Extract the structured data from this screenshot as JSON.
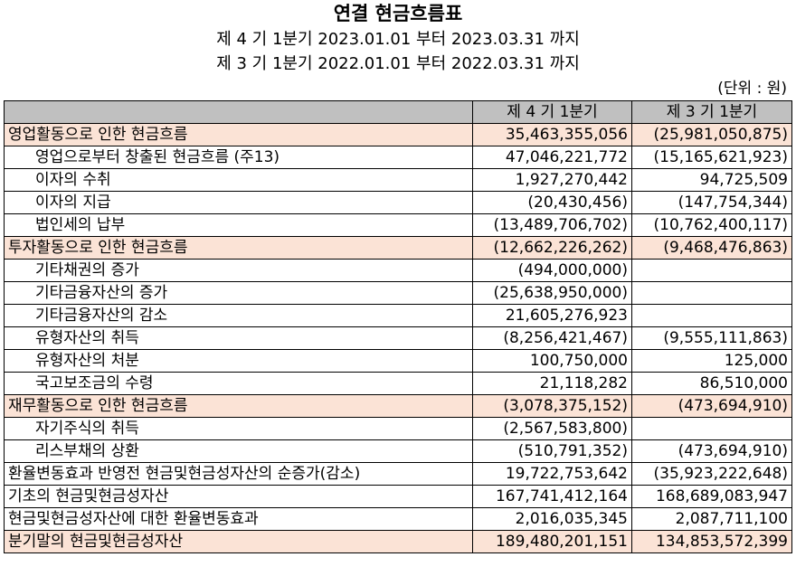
{
  "title": "연결 현금흐름표",
  "periods": [
    "제 4 기 1분기 2023.01.01 부터 2023.03.31 까지",
    "제 3 기 1분기 2022.01.01 부터 2022.03.31 까지"
  ],
  "unit": "(단위 : 원)",
  "table": {
    "columns": [
      "",
      "제 4 기 1분기",
      "제 3 기 1분기"
    ],
    "rows": [
      {
        "label": "영업활동으로 인한 현금흐름",
        "cur": "35,463,355,056",
        "prev": "(25,981,050,875)",
        "highlight": true,
        "indent": false
      },
      {
        "label": "영업으로부터 창출된 현금흐름 (주13)",
        "cur": "47,046,221,772",
        "prev": "(15,165,621,923)",
        "highlight": false,
        "indent": true
      },
      {
        "label": "이자의 수취",
        "cur": "1,927,270,442",
        "prev": "94,725,509",
        "highlight": false,
        "indent": true
      },
      {
        "label": "이자의 지급",
        "cur": "(20,430,456)",
        "prev": "(147,754,344)",
        "highlight": false,
        "indent": true
      },
      {
        "label": "법인세의 납부",
        "cur": "(13,489,706,702)",
        "prev": "(10,762,400,117)",
        "highlight": false,
        "indent": true
      },
      {
        "label": "투자활동으로 인한 현금흐름",
        "cur": "(12,662,226,262)",
        "prev": "(9,468,476,863)",
        "highlight": true,
        "indent": false
      },
      {
        "label": "기타채권의 증가",
        "cur": "(494,000,000)",
        "prev": "",
        "highlight": false,
        "indent": true
      },
      {
        "label": "기타금융자산의 증가",
        "cur": "(25,638,950,000)",
        "prev": "",
        "highlight": false,
        "indent": true
      },
      {
        "label": "기타금융자산의 감소",
        "cur": "21,605,276,923",
        "prev": "",
        "highlight": false,
        "indent": true
      },
      {
        "label": "유형자산의 취득",
        "cur": "(8,256,421,467)",
        "prev": "(9,555,111,863)",
        "highlight": false,
        "indent": true
      },
      {
        "label": "유형자산의 처분",
        "cur": "100,750,000",
        "prev": "125,000",
        "highlight": false,
        "indent": true
      },
      {
        "label": "국고보조금의 수령",
        "cur": "21,118,282",
        "prev": "86,510,000",
        "highlight": false,
        "indent": true
      },
      {
        "label": "재무활동으로 인한 현금흐름",
        "cur": "(3,078,375,152)",
        "prev": "(473,694,910)",
        "highlight": true,
        "indent": false
      },
      {
        "label": "자기주식의 취득",
        "cur": "(2,567,583,800)",
        "prev": "",
        "highlight": false,
        "indent": true
      },
      {
        "label": "리스부채의 상환",
        "cur": "(510,791,352)",
        "prev": "(473,694,910)",
        "highlight": false,
        "indent": true
      },
      {
        "label": "환율변동효과 반영전 현금및현금성자산의 순증가(감소)",
        "cur": "19,722,753,642",
        "prev": "(35,923,222,648)",
        "highlight": false,
        "indent": false
      },
      {
        "label": "기초의 현금및현금성자산",
        "cur": "167,741,412,164",
        "prev": "168,689,083,947",
        "highlight": false,
        "indent": false
      },
      {
        "label": "현금및현금성자산에 대한 환율변동효과",
        "cur": "2,016,035,345",
        "prev": "2,087,711,100",
        "highlight": false,
        "indent": false
      },
      {
        "label": "분기말의 현금및현금성자산",
        "cur": "189,480,201,151",
        "prev": "134,853,572,399",
        "highlight": true,
        "indent": false
      }
    ]
  }
}
